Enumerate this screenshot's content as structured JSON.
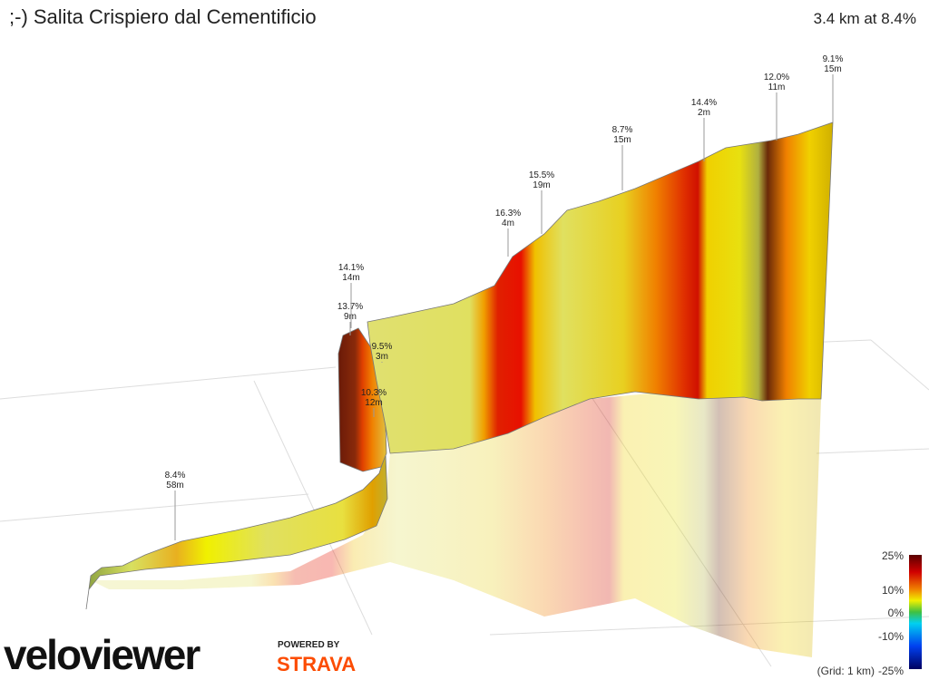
{
  "header": {
    "title": ";-) Salita Crispiero dal Cementificio",
    "summary": "3.4 km at 8.4%"
  },
  "annotations": [
    {
      "grade": "8.4%",
      "length": "58m"
    },
    {
      "grade": "10.3%",
      "length": "12m"
    },
    {
      "grade": "9.5%",
      "length": "3m"
    },
    {
      "grade": "13.7%",
      "length": "9m"
    },
    {
      "grade": "14.1%",
      "length": "14m"
    },
    {
      "grade": "16.3%",
      "length": "4m"
    },
    {
      "grade": "15.5%",
      "length": "19m"
    },
    {
      "grade": "8.7%",
      "length": "15m"
    },
    {
      "grade": "14.4%",
      "length": "2m"
    },
    {
      "grade": "12.0%",
      "length": "11m"
    },
    {
      "grade": "9.1%",
      "length": "15m"
    }
  ],
  "legend": {
    "labels": [
      "25%",
      "10%",
      "0%",
      "-10%",
      "-25%"
    ],
    "grid_note": "(Grid: 1 km)"
  },
  "branding": {
    "logo": "veloviewer",
    "powered_by": "POWERED BY",
    "partner": "STRAVA"
  }
}
